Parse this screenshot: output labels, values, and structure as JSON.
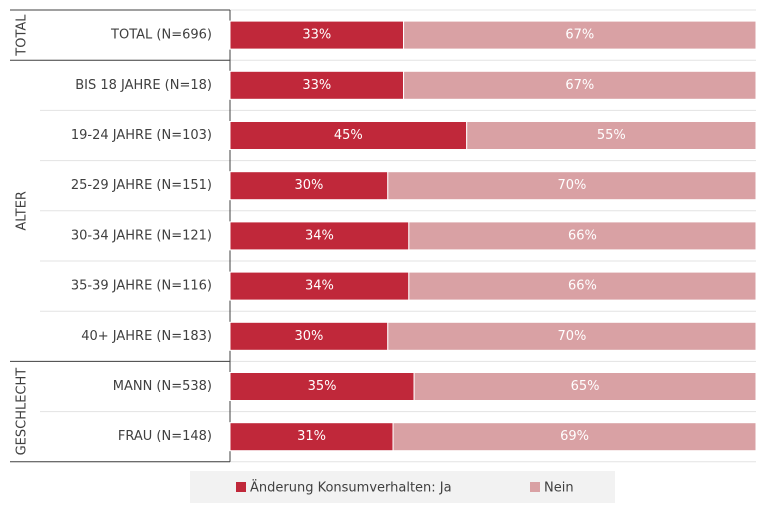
{
  "chart_data": {
    "type": "stacked_bar_horizontal",
    "categories": [
      "TOTAL (N=696)",
      "BIS 18 JAHRE (N=18)",
      "19-24 JAHRE (N=103)",
      "25-29 JAHRE (N=151)",
      "30-34 JAHRE (N=121)",
      "35-39 JAHRE (N=116)",
      "40+ JAHRE (N=183)",
      "MANN (N=538)",
      "FRAU (N=148)"
    ],
    "groups": [
      {
        "label": "TOTAL",
        "size": 1
      },
      {
        "label": "ALTER",
        "size": 6
      },
      {
        "label": "GESCHLECHT",
        "size": 2
      }
    ],
    "series": [
      {
        "name": "Änderung Konsumverhalten: Ja",
        "color": "#c0283a",
        "values": [
          33,
          33,
          45,
          30,
          34,
          34,
          30,
          35,
          31
        ],
        "value_labels": [
          "33%",
          "33%",
          "45%",
          "30%",
          "34%",
          "34%",
          "30%",
          "35%",
          "31%"
        ]
      },
      {
        "name": "Nein",
        "color": "#d9a1a4",
        "values": [
          67,
          67,
          55,
          70,
          66,
          66,
          70,
          65,
          69
        ],
        "value_labels": [
          "67%",
          "67%",
          "55%",
          "70%",
          "66%",
          "66%",
          "70%",
          "65%",
          "69%"
        ]
      }
    ],
    "xlim": [
      0,
      100
    ],
    "legend": "bottom"
  }
}
